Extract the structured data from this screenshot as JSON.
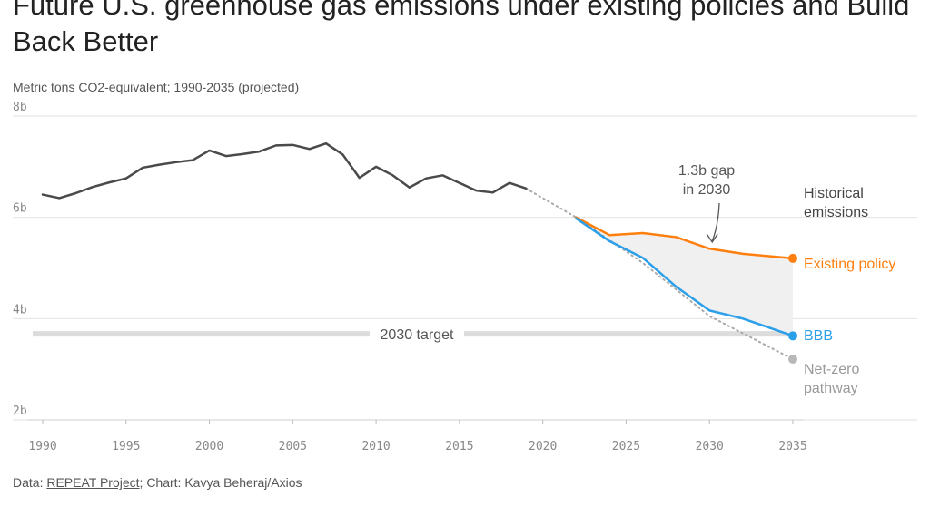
{
  "title": "Future U.S. greenhouse gas emissions under existing policies and Build Back Better",
  "subtitle": "Metric tons CO2-equivalent; 1990-2035 (projected)",
  "footer": {
    "data_prefix": "Data: ",
    "source": "REPEAT Project",
    "credit": "; Chart: Kavya Beheraj/Axios"
  },
  "colors": {
    "historical": "#4a4a4a",
    "existing_policy": "#ff7f0e",
    "bbb": "#2b9fe8",
    "net_zero": "#b8b8b8",
    "gap_fill": "#f0f0f0",
    "target_band": "#dcdcdc"
  },
  "chart_data": {
    "type": "line",
    "title": "Future U.S. greenhouse gas emissions under existing policies and Build Back Better",
    "subtitle": "Metric tons CO2-equivalent; 1990-2035 (projected)",
    "xlim": [
      1990,
      2035
    ],
    "ylim": [
      2,
      8
    ],
    "x_ticks": [
      "1990",
      "1995",
      "2000",
      "2005",
      "2010",
      "2015",
      "2020",
      "2025",
      "2030",
      "2035"
    ],
    "x_tick_values": [
      1990,
      1995,
      2000,
      2005,
      2010,
      2015,
      2020,
      2025,
      2030,
      2035
    ],
    "y_ticks": [
      "2b",
      "4b",
      "6b",
      "8b"
    ],
    "y_tick_values": [
      2,
      4,
      6,
      8
    ],
    "grid": true,
    "series": [
      {
        "name": "Historical\nemissions",
        "style": "solid",
        "points": [
          [
            1990,
            6.45
          ],
          [
            1991,
            6.38
          ],
          [
            1992,
            6.48
          ],
          [
            1993,
            6.6
          ],
          [
            1994,
            6.69
          ],
          [
            1995,
            6.77
          ],
          [
            1996,
            6.98
          ],
          [
            1997,
            7.04
          ],
          [
            1998,
            7.09
          ],
          [
            1999,
            7.13
          ],
          [
            2000,
            7.32
          ],
          [
            2001,
            7.21
          ],
          [
            2002,
            7.25
          ],
          [
            2003,
            7.3
          ],
          [
            2004,
            7.42
          ],
          [
            2005,
            7.43
          ],
          [
            2006,
            7.35
          ],
          [
            2007,
            7.46
          ],
          [
            2008,
            7.24
          ],
          [
            2009,
            6.78
          ],
          [
            2010,
            7.0
          ],
          [
            2011,
            6.83
          ],
          [
            2012,
            6.59
          ],
          [
            2013,
            6.77
          ],
          [
            2014,
            6.83
          ],
          [
            2015,
            6.68
          ],
          [
            2016,
            6.53
          ],
          [
            2017,
            6.49
          ],
          [
            2018,
            6.68
          ],
          [
            2019,
            6.57
          ]
        ]
      },
      {
        "name": "Existing policy",
        "style": "solid",
        "points": [
          [
            2022,
            6.0
          ],
          [
            2024,
            5.65
          ],
          [
            2026,
            5.69
          ],
          [
            2028,
            5.61
          ],
          [
            2030,
            5.38
          ],
          [
            2032,
            5.28
          ],
          [
            2035,
            5.19
          ]
        ]
      },
      {
        "name": "BBB",
        "style": "solid",
        "points": [
          [
            2022,
            5.98
          ],
          [
            2024,
            5.53
          ],
          [
            2026,
            5.2
          ],
          [
            2028,
            4.63
          ],
          [
            2030,
            4.16
          ],
          [
            2032,
            4.0
          ],
          [
            2035,
            3.66
          ]
        ]
      },
      {
        "name": "Net-zero\npathway",
        "style": "dotted",
        "points": [
          [
            2019,
            6.57
          ],
          [
            2022,
            6.0
          ],
          [
            2026,
            5.1
          ],
          [
            2030,
            4.05
          ],
          [
            2035,
            3.2
          ]
        ]
      }
    ],
    "reference_band": {
      "label": "2030 target",
      "y": 3.7
    },
    "annotation": {
      "text": "1.3b gap\nin 2030",
      "points_to_x": 2030
    }
  }
}
